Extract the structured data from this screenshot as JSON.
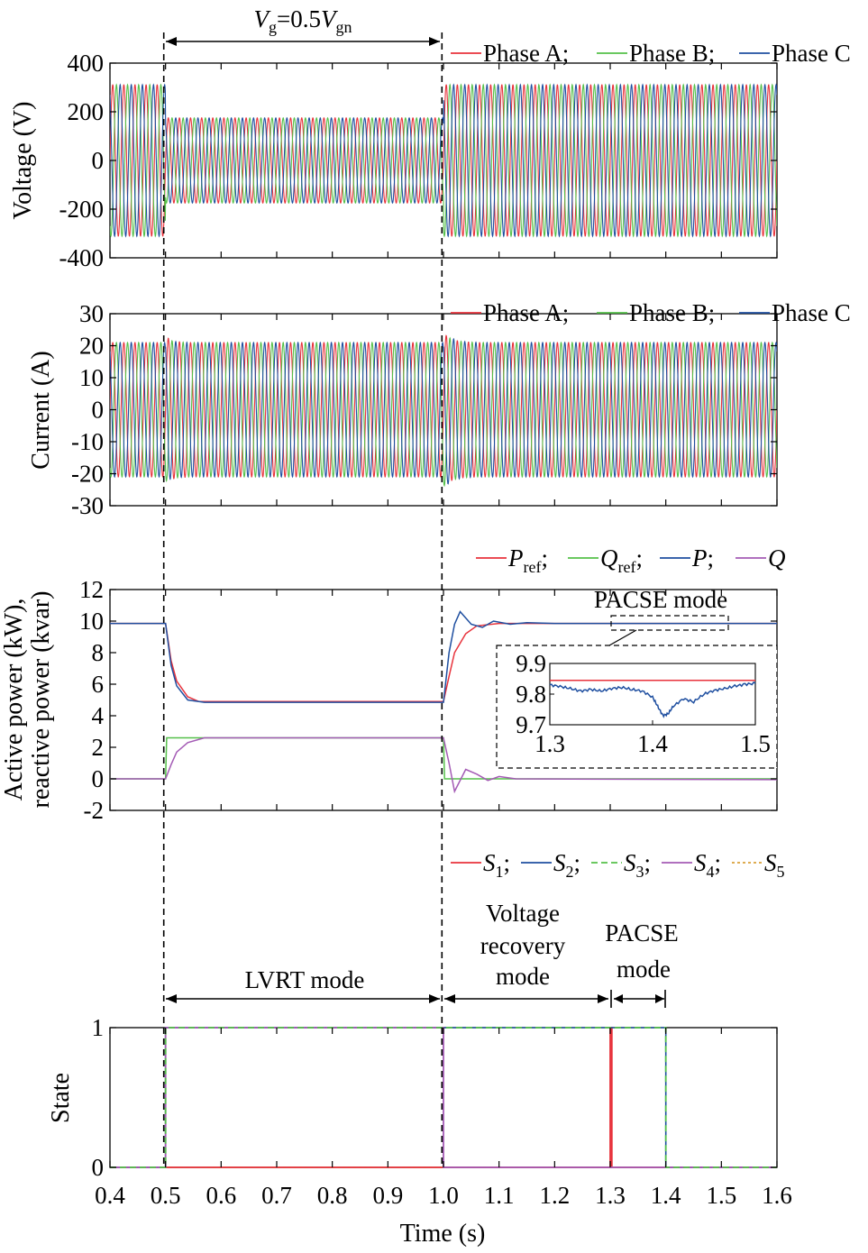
{
  "colors": {
    "phase_a": "#e8333c",
    "phase_b": "#55c04a",
    "phase_c": "#1f4fa0",
    "P_ref": "#e8333c",
    "Q_ref": "#55c04a",
    "P": "#1f4fa0",
    "Q": "#a45bb5",
    "S1": "#e8333c",
    "S2": "#1f4fa0",
    "S3": "#55c04a",
    "S4": "#a45bb5",
    "S5": "#d9a13a"
  },
  "annotations": {
    "vg_V": "V",
    "vg_g": "g",
    "vg_mid": "=0.5",
    "vg_V2": "V",
    "vg_gn": "gn",
    "lvrt": "LVRT mode",
    "vr_line1": "Voltage",
    "vr_line2": "recovery",
    "vr_line3": "mode",
    "pacse_line1": "PACSE",
    "pacse_line2": "mode",
    "pacse_inset": "PACSE mode"
  },
  "chart_data": [
    {
      "type": "line",
      "ylabel": "Voltage (V)",
      "ylim": [
        -400,
        400
      ],
      "yticks": [
        "400",
        "200",
        "0",
        "-200",
        "-400"
      ],
      "xlim": [
        0.4,
        1.6
      ],
      "legend": [
        "Phase A;",
        "Phase B;",
        "Phase C"
      ],
      "series": [
        {
          "name": "Phase A",
          "frequency_hz": 50,
          "amplitude_segments": [
            {
              "t": [
                0.4,
                0.5
              ],
              "amp": 311
            },
            {
              "t": [
                0.5,
                1.0
              ],
              "amp": 175
            },
            {
              "t": [
                1.0,
                1.6
              ],
              "amp": 311
            }
          ]
        },
        {
          "name": "Phase B",
          "frequency_hz": 50,
          "amplitude_segments": [
            {
              "t": [
                0.4,
                0.5
              ],
              "amp": 311
            },
            {
              "t": [
                0.5,
                1.0
              ],
              "amp": 175
            },
            {
              "t": [
                1.0,
                1.6
              ],
              "amp": 311
            }
          ]
        },
        {
          "name": "Phase C",
          "frequency_hz": 50,
          "amplitude_segments": [
            {
              "t": [
                0.4,
                0.5
              ],
              "amp": 311
            },
            {
              "t": [
                0.5,
                1.0
              ],
              "amp": 175
            },
            {
              "t": [
                1.0,
                1.6
              ],
              "amp": 311
            }
          ]
        }
      ]
    },
    {
      "type": "line",
      "ylabel": "Current (A)",
      "ylim": [
        -30,
        30
      ],
      "yticks": [
        "30",
        "20",
        "10",
        "0",
        "-10",
        "-20",
        "-30"
      ],
      "xlim": [
        0.4,
        1.6
      ],
      "legend": [
        "Phase A;",
        "Phase B;",
        "Phase C"
      ],
      "series": [
        {
          "name": "Phase A",
          "frequency_hz": 50,
          "amplitude": 21,
          "transient_peaks": [
            {
              "t": 0.51,
              "peak": 23
            },
            {
              "t": 1.01,
              "peak": 25
            }
          ]
        },
        {
          "name": "Phase B",
          "frequency_hz": 50,
          "amplitude": 21
        },
        {
          "name": "Phase C",
          "frequency_hz": 50,
          "amplitude": 21
        }
      ]
    },
    {
      "type": "line",
      "ylabel_line1": "Active power (kW),",
      "ylabel_line2": "reactive power (kvar)",
      "ylim": [
        -2,
        12
      ],
      "yticks": [
        "12",
        "10",
        "8",
        "6",
        "4",
        "2",
        "0",
        "-2"
      ],
      "xlim": [
        0.4,
        1.6
      ],
      "legend": [
        {
          "main": "P",
          "sub": "ref",
          "sep": ";"
        },
        {
          "main": "Q",
          "sub": "ref",
          "sep": ";"
        },
        {
          "main": "P",
          "sub": "",
          "sep": ";"
        },
        {
          "main": "Q",
          "sub": "",
          "sep": ""
        }
      ],
      "series": [
        {
          "name": "P_ref",
          "points": [
            [
              0.4,
              9.85
            ],
            [
              0.5,
              9.85
            ],
            [
              0.51,
              7.5
            ],
            [
              0.52,
              6.2
            ],
            [
              0.54,
              5.2
            ],
            [
              0.56,
              4.9
            ],
            [
              1.0,
              4.9
            ],
            [
              1.01,
              6.5
            ],
            [
              1.02,
              8.0
            ],
            [
              1.04,
              9.2
            ],
            [
              1.06,
              9.7
            ],
            [
              1.1,
              9.85
            ],
            [
              1.6,
              9.85
            ]
          ]
        },
        {
          "name": "P",
          "points": [
            [
              0.4,
              9.85
            ],
            [
              0.5,
              9.85
            ],
            [
              0.51,
              7.2
            ],
            [
              0.52,
              5.9
            ],
            [
              0.54,
              5.0
            ],
            [
              0.57,
              4.85
            ],
            [
              1.0,
              4.85
            ],
            [
              1.01,
              8.0
            ],
            [
              1.02,
              9.8
            ],
            [
              1.03,
              10.6
            ],
            [
              1.05,
              9.8
            ],
            [
              1.07,
              9.6
            ],
            [
              1.09,
              10.0
            ],
            [
              1.12,
              9.8
            ],
            [
              1.15,
              9.9
            ],
            [
              1.2,
              9.85
            ],
            [
              1.6,
              9.85
            ]
          ]
        },
        {
          "name": "Q_ref",
          "points": [
            [
              0.4,
              0
            ],
            [
              0.5,
              0
            ],
            [
              0.502,
              2.6
            ],
            [
              1.0,
              2.6
            ],
            [
              1.002,
              0
            ],
            [
              1.6,
              0
            ]
          ]
        },
        {
          "name": "Q",
          "points": [
            [
              0.4,
              0
            ],
            [
              0.5,
              0
            ],
            [
              0.51,
              0.9
            ],
            [
              0.52,
              1.7
            ],
            [
              0.54,
              2.3
            ],
            [
              0.57,
              2.6
            ],
            [
              1.0,
              2.6
            ],
            [
              1.01,
              1.0
            ],
            [
              1.02,
              -0.8
            ],
            [
              1.04,
              0.6
            ],
            [
              1.06,
              0.3
            ],
            [
              1.08,
              -0.1
            ],
            [
              1.1,
              0.15
            ],
            [
              1.13,
              0
            ],
            [
              1.6,
              -0.05
            ]
          ]
        }
      ],
      "inset": {
        "xlim": [
          1.3,
          1.5
        ],
        "ylim": [
          9.7,
          9.9
        ],
        "xticks": [
          "1.3",
          "1.4",
          "1.5"
        ],
        "yticks": [
          "9.9",
          "9.8",
          "9.7"
        ],
        "series": [
          {
            "name": "P_ref",
            "points": [
              [
                1.3,
                9.845
              ],
              [
                1.5,
                9.845
              ]
            ]
          },
          {
            "name": "P",
            "points": [
              [
                1.3,
                9.83
              ],
              [
                1.31,
                9.825
              ],
              [
                1.32,
                9.818
              ],
              [
                1.33,
                9.81
              ],
              [
                1.34,
                9.815
              ],
              [
                1.35,
                9.81
              ],
              [
                1.36,
                9.818
              ],
              [
                1.37,
                9.822
              ],
              [
                1.38,
                9.815
              ],
              [
                1.39,
                9.81
              ],
              [
                1.4,
                9.79
              ],
              [
                1.405,
                9.76
              ],
              [
                1.41,
                9.73
              ],
              [
                1.415,
                9.735
              ],
              [
                1.42,
                9.76
              ],
              [
                1.43,
                9.785
              ],
              [
                1.44,
                9.775
              ],
              [
                1.45,
                9.8
              ],
              [
                1.46,
                9.812
              ],
              [
                1.47,
                9.818
              ],
              [
                1.48,
                9.826
              ],
              [
                1.49,
                9.832
              ],
              [
                1.5,
                9.835
              ]
            ]
          }
        ]
      }
    },
    {
      "type": "line",
      "ylabel": "State",
      "ylim": [
        0,
        1
      ],
      "yticks": [
        "1",
        "0"
      ],
      "xlim": [
        0.4,
        1.6
      ],
      "xticks": [
        "0.4",
        "0.5",
        "0.6",
        "0.7",
        "0.8",
        "0.9",
        "1.0",
        "1.1",
        "1.2",
        "1.3",
        "1.4",
        "1.5",
        "1.6"
      ],
      "xlabel": "Time (s)",
      "legend": [
        {
          "main": "S",
          "sub": "1",
          "sep": ";"
        },
        {
          "main": "S",
          "sub": "2",
          "sep": ";"
        },
        {
          "main": "S",
          "sub": "3",
          "sep": ";"
        },
        {
          "main": "S",
          "sub": "4",
          "sep": ";"
        },
        {
          "main": "S",
          "sub": "5",
          "sep": ""
        }
      ],
      "series": [
        {
          "name": "S1",
          "points": [
            [
              0.4,
              0
            ],
            [
              1.3,
              0
            ],
            [
              1.3,
              1
            ],
            [
              1.6,
              1
            ]
          ],
          "visible_segment": [
            1.3,
            1.302
          ]
        },
        {
          "name": "S2",
          "points": [
            [
              0.4,
              0
            ],
            [
              0.5,
              0
            ],
            [
              0.5,
              1
            ],
            [
              1.4,
              1
            ],
            [
              1.4,
              0
            ],
            [
              1.6,
              0
            ]
          ]
        },
        {
          "name": "S3",
          "points": [
            [
              0.4,
              0
            ],
            [
              0.5,
              0
            ],
            [
              0.5,
              1
            ],
            [
              1.4,
              1
            ],
            [
              1.4,
              0
            ],
            [
              1.6,
              0
            ]
          ]
        },
        {
          "name": "S4",
          "points": [
            [
              0.4,
              0
            ],
            [
              0.5,
              0
            ],
            [
              0.5,
              1
            ],
            [
              1.0,
              1
            ],
            [
              1.0,
              0
            ],
            [
              1.6,
              0
            ]
          ]
        },
        {
          "name": "S5",
          "points": [
            [
              0.4,
              0
            ],
            [
              1.6,
              0
            ]
          ]
        }
      ]
    }
  ]
}
